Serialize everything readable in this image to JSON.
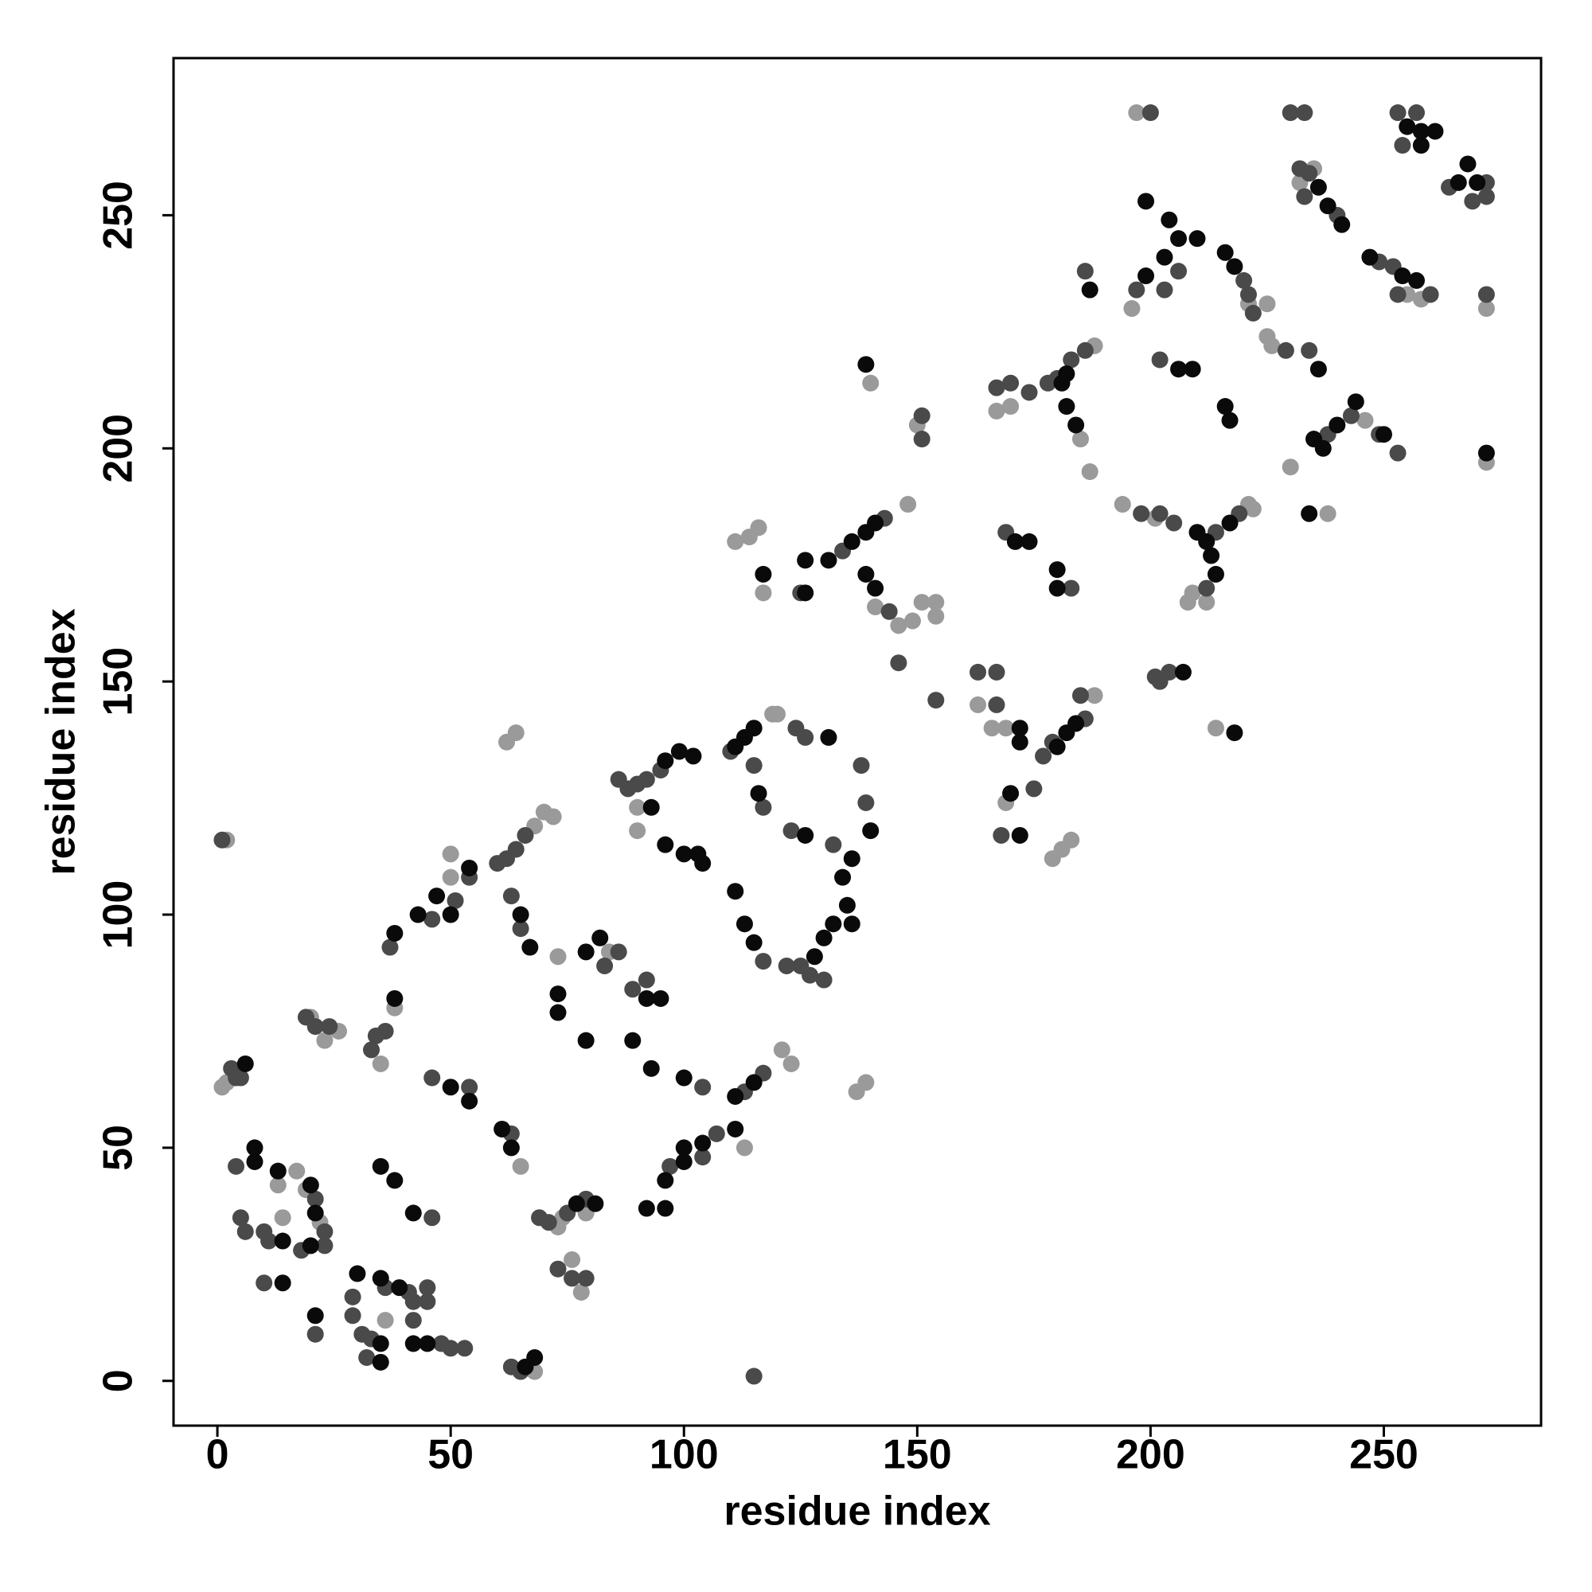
{
  "chart_data": {
    "type": "scatter",
    "xlabel": "residue index",
    "ylabel": "residue index",
    "xlim": [
      -9.4,
      283.7
    ],
    "ylim": [
      -9.6,
      283.7
    ],
    "xticks": [
      0,
      50,
      100,
      150,
      200,
      250
    ],
    "yticks": [
      0,
      50,
      100,
      150,
      200,
      250
    ],
    "grid": false,
    "series": [
      {
        "color": "#9a9a9a",
        "x": [
          2,
          1,
          2,
          14,
          13,
          17,
          19,
          22,
          20,
          23,
          26,
          35,
          38,
          36,
          50,
          50,
          65,
          68,
          70,
          72,
          62,
          64,
          68,
          73,
          74,
          79,
          76,
          78,
          73,
          84,
          90,
          90,
          119,
          120,
          121,
          123,
          113,
          137,
          139,
          111,
          114,
          116,
          117,
          141,
          146,
          148,
          149,
          151,
          154,
          154,
          140,
          150,
          163,
          166,
          169,
          169,
          179,
          181,
          183,
          188,
          214,
          167,
          170,
          188,
          185,
          187,
          194,
          201,
          221,
          222,
          209,
          212,
          208,
          197,
          196,
          221,
          225,
          225,
          226,
          230,
          238,
          246,
          232,
          235,
          255,
          258,
          272,
          272
        ],
        "y": [
          116,
          63,
          64,
          35,
          42,
          45,
          41,
          34,
          78,
          73,
          75,
          68,
          80,
          13,
          113,
          108,
          46,
          119,
          122,
          121,
          137,
          139,
          2,
          33,
          35,
          36,
          26,
          19,
          91,
          92,
          118,
          123,
          143,
          143,
          71,
          68,
          50,
          62,
          64,
          180,
          181,
          183,
          169,
          166,
          162,
          188,
          163,
          167,
          167,
          164,
          214,
          205,
          145,
          140,
          140,
          124,
          112,
          114,
          116,
          147,
          140,
          208,
          209,
          222,
          202,
          195,
          188,
          185,
          188,
          187,
          169,
          167,
          167,
          272,
          230,
          231,
          231,
          224,
          222,
          196,
          186,
          206,
          257,
          260,
          233,
          232,
          197,
          230
        ]
      },
      {
        "color": "#4a4a4a",
        "x": [
          1,
          3,
          4,
          5,
          4,
          5,
          6,
          10,
          11,
          10,
          21,
          23,
          23,
          18,
          21,
          19,
          21,
          24,
          29,
          29,
          31,
          33,
          32,
          36,
          41,
          42,
          45,
          42,
          45,
          48,
          50,
          53,
          46,
          33,
          34,
          36,
          37,
          46,
          51,
          54,
          46,
          54,
          63,
          60,
          62,
          64,
          66,
          63,
          65,
          63,
          65,
          69,
          71,
          75,
          79,
          73,
          76,
          79,
          83,
          86,
          89,
          92,
          104,
          97,
          104,
          107,
          113,
          117,
          86,
          88,
          90,
          92,
          95,
          110,
          115,
          117,
          117,
          122,
          125,
          127,
          130,
          124,
          126,
          123,
          132,
          138,
          139,
          115,
          125,
          134,
          143,
          144,
          146,
          154,
          151,
          151,
          163,
          167,
          167,
          175,
          168,
          177,
          179,
          186,
          185,
          201,
          204,
          202,
          167,
          170,
          174,
          178,
          180,
          183,
          186,
          198,
          202,
          205,
          214,
          219,
          212,
          169,
          183,
          202,
          229,
          234,
          238,
          249,
          253,
          243,
          186,
          197,
          203,
          206,
          220,
          221,
          222,
          200,
          230,
          233,
          232,
          234,
          233,
          240,
          249,
          252,
          253,
          260,
          253,
          257,
          254,
          264,
          269,
          272,
          272,
          272
        ],
        "y": [
          116,
          67,
          65,
          65,
          46,
          35,
          32,
          32,
          30,
          21,
          39,
          32,
          29,
          28,
          10,
          78,
          76,
          76,
          18,
          14,
          10,
          9,
          5,
          20,
          19,
          17,
          20,
          13,
          17,
          8,
          7,
          7,
          35,
          71,
          74,
          75,
          93,
          99,
          103,
          108,
          65,
          63,
          53,
          111,
          112,
          114,
          117,
          104,
          97,
          3,
          2,
          35,
          34,
          36,
          39,
          24,
          22,
          22,
          89,
          92,
          84,
          86,
          63,
          46,
          48,
          53,
          62,
          66,
          129,
          127,
          128,
          129,
          131,
          135,
          132,
          123,
          90,
          89,
          89,
          87,
          86,
          140,
          138,
          118,
          115,
          132,
          124,
          1,
          169,
          178,
          185,
          165,
          154,
          146,
          207,
          202,
          152,
          152,
          145,
          127,
          117,
          134,
          137,
          142,
          147,
          151,
          152,
          150,
          213,
          214,
          212,
          214,
          215,
          219,
          221,
          186,
          186,
          184,
          182,
          186,
          170,
          182,
          170,
          219,
          221,
          221,
          203,
          203,
          199,
          207,
          238,
          234,
          234,
          238,
          236,
          233,
          229,
          272,
          272,
          272,
          260,
          259,
          254,
          250,
          240,
          239,
          233,
          233,
          272,
          272,
          265,
          256,
          253,
          254,
          257,
          233
        ]
      },
      {
        "color": "#0a0a0a",
        "x": [
          6,
          8,
          8,
          13,
          14,
          14,
          20,
          21,
          20,
          21,
          30,
          35,
          35,
          35,
          35,
          38,
          39,
          42,
          45,
          42,
          38,
          38,
          43,
          47,
          50,
          54,
          50,
          54,
          61,
          63,
          65,
          67,
          66,
          68,
          77,
          81,
          73,
          73,
          79,
          82,
          79,
          89,
          92,
          95,
          93,
          100,
          92,
          96,
          96,
          100,
          100,
          104,
          111,
          111,
          115,
          99,
          102,
          96,
          93,
          96,
          100,
          103,
          104,
          111,
          113,
          115,
          116,
          111,
          113,
          115,
          128,
          130,
          132,
          135,
          136,
          134,
          136,
          140,
          131,
          126,
          117,
          126,
          126,
          131,
          136,
          139,
          141,
          139,
          141,
          139,
          172,
          172,
          170,
          172,
          180,
          182,
          184,
          182,
          181,
          182,
          184,
          210,
          212,
          217,
          213,
          214,
          171,
          174,
          180,
          180,
          207,
          218,
          206,
          209,
          216,
          217,
          235,
          237,
          240,
          244,
          250,
          236,
          234,
          272,
          187,
          199,
          203,
          206,
          199,
          204,
          210,
          216,
          218,
          236,
          238,
          241,
          247,
          254,
          257,
          255,
          258,
          258,
          261,
          266,
          268,
          270
        ],
        "y": [
          68,
          50,
          47,
          45,
          30,
          21,
          42,
          36,
          29,
          14,
          23,
          22,
          8,
          4,
          46,
          43,
          20,
          8,
          8,
          36,
          82,
          96,
          100,
          104,
          100,
          110,
          63,
          60,
          54,
          50,
          100,
          93,
          3,
          5,
          38,
          38,
          83,
          79,
          92,
          95,
          73,
          73,
          82,
          82,
          67,
          65,
          37,
          37,
          43,
          47,
          50,
          51,
          54,
          61,
          64,
          135,
          134,
          133,
          123,
          115,
          113,
          113,
          111,
          136,
          138,
          140,
          126,
          105,
          98,
          94,
          91,
          95,
          98,
          102,
          98,
          108,
          112,
          118,
          138,
          117,
          173,
          176,
          169,
          176,
          180,
          182,
          184,
          173,
          170,
          218,
          140,
          137,
          126,
          117,
          136,
          139,
          141,
          216,
          214,
          209,
          205,
          182,
          180,
          184,
          177,
          173,
          180,
          180,
          174,
          170,
          152,
          139,
          217,
          217,
          209,
          206,
          202,
          200,
          205,
          210,
          203,
          217,
          186,
          199,
          234,
          237,
          241,
          245,
          253,
          249,
          245,
          242,
          239,
          256,
          252,
          248,
          241,
          237,
          236,
          269,
          268,
          265,
          268,
          257,
          261,
          257
        ]
      }
    ]
  }
}
